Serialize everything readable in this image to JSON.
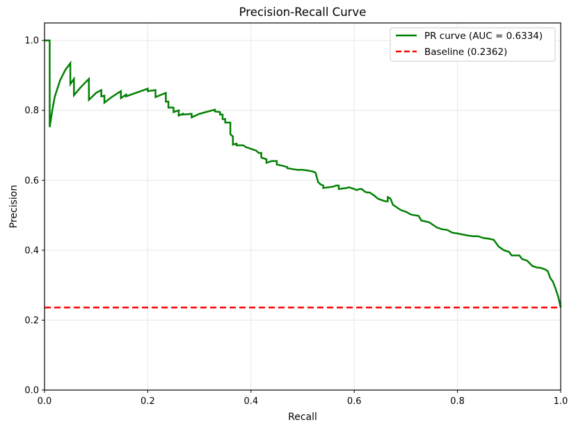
{
  "chart_data": {
    "type": "line",
    "title": "Precision-Recall Curve",
    "xlabel": "Recall",
    "ylabel": "Precision",
    "xlim": [
      0,
      1
    ],
    "ylim": [
      0,
      1.05
    ],
    "xticks": [
      0.0,
      0.2,
      0.4,
      0.6,
      0.8,
      1.0
    ],
    "yticks": [
      0.0,
      0.2,
      0.4,
      0.6,
      0.8,
      1.0
    ],
    "xtick_labels": [
      "0.0",
      "0.2",
      "0.4",
      "0.6",
      "0.8",
      "1.0"
    ],
    "ytick_labels": [
      "0.0",
      "0.2",
      "0.4",
      "0.6",
      "0.8",
      "1.0"
    ],
    "grid": true,
    "legend_position": "top-right",
    "series": [
      {
        "name": "PR curve (AUC = 0.6334)",
        "color": "#008000",
        "style": "solid",
        "points": [
          [
            0.0,
            1.0
          ],
          [
            0.01,
            1.0
          ],
          [
            0.01,
            0.752
          ],
          [
            0.015,
            0.8
          ],
          [
            0.02,
            0.84
          ],
          [
            0.03,
            0.885
          ],
          [
            0.04,
            0.915
          ],
          [
            0.05,
            0.935
          ],
          [
            0.05,
            0.875
          ],
          [
            0.057,
            0.89
          ],
          [
            0.057,
            0.843
          ],
          [
            0.07,
            0.866
          ],
          [
            0.086,
            0.89
          ],
          [
            0.086,
            0.83
          ],
          [
            0.1,
            0.85
          ],
          [
            0.11,
            0.858
          ],
          [
            0.11,
            0.84
          ],
          [
            0.116,
            0.842
          ],
          [
            0.116,
            0.822
          ],
          [
            0.13,
            0.838
          ],
          [
            0.148,
            0.855
          ],
          [
            0.148,
            0.835
          ],
          [
            0.158,
            0.845
          ],
          [
            0.158,
            0.84
          ],
          [
            0.2,
            0.862
          ],
          [
            0.2,
            0.855
          ],
          [
            0.215,
            0.858
          ],
          [
            0.215,
            0.838
          ],
          [
            0.235,
            0.85
          ],
          [
            0.235,
            0.825
          ],
          [
            0.24,
            0.825
          ],
          [
            0.24,
            0.808
          ],
          [
            0.25,
            0.808
          ],
          [
            0.25,
            0.795
          ],
          [
            0.26,
            0.8
          ],
          [
            0.26,
            0.785
          ],
          [
            0.268,
            0.79
          ],
          [
            0.268,
            0.788
          ],
          [
            0.285,
            0.79
          ],
          [
            0.285,
            0.78
          ],
          [
            0.3,
            0.79
          ],
          [
            0.33,
            0.802
          ],
          [
            0.33,
            0.797
          ],
          [
            0.34,
            0.795
          ],
          [
            0.34,
            0.788
          ],
          [
            0.345,
            0.788
          ],
          [
            0.345,
            0.775
          ],
          [
            0.35,
            0.775
          ],
          [
            0.35,
            0.765
          ],
          [
            0.36,
            0.765
          ],
          [
            0.36,
            0.732
          ],
          [
            0.365,
            0.725
          ],
          [
            0.365,
            0.702
          ],
          [
            0.372,
            0.705
          ],
          [
            0.372,
            0.7
          ],
          [
            0.385,
            0.7
          ],
          [
            0.39,
            0.695
          ],
          [
            0.4,
            0.69
          ],
          [
            0.41,
            0.685
          ],
          [
            0.415,
            0.678
          ],
          [
            0.42,
            0.678
          ],
          [
            0.42,
            0.665
          ],
          [
            0.43,
            0.66
          ],
          [
            0.43,
            0.65
          ],
          [
            0.44,
            0.655
          ],
          [
            0.45,
            0.655
          ],
          [
            0.45,
            0.645
          ],
          [
            0.46,
            0.642
          ],
          [
            0.47,
            0.638
          ],
          [
            0.47,
            0.635
          ],
          [
            0.48,
            0.632
          ],
          [
            0.49,
            0.63
          ],
          [
            0.5,
            0.63
          ],
          [
            0.51,
            0.628
          ],
          [
            0.52,
            0.625
          ],
          [
            0.525,
            0.622
          ],
          [
            0.53,
            0.595
          ],
          [
            0.535,
            0.588
          ],
          [
            0.54,
            0.585
          ],
          [
            0.54,
            0.578
          ],
          [
            0.55,
            0.58
          ],
          [
            0.56,
            0.582
          ],
          [
            0.565,
            0.585
          ],
          [
            0.57,
            0.585
          ],
          [
            0.57,
            0.575
          ],
          [
            0.585,
            0.578
          ],
          [
            0.59,
            0.58
          ],
          [
            0.6,
            0.575
          ],
          [
            0.605,
            0.572
          ],
          [
            0.61,
            0.575
          ],
          [
            0.615,
            0.575
          ],
          [
            0.62,
            0.568
          ],
          [
            0.625,
            0.565
          ],
          [
            0.63,
            0.565
          ],
          [
            0.64,
            0.555
          ],
          [
            0.645,
            0.548
          ],
          [
            0.65,
            0.545
          ],
          [
            0.66,
            0.54
          ],
          [
            0.665,
            0.54
          ],
          [
            0.665,
            0.552
          ],
          [
            0.67,
            0.548
          ],
          [
            0.675,
            0.53
          ],
          [
            0.68,
            0.525
          ],
          [
            0.69,
            0.515
          ],
          [
            0.7,
            0.51
          ],
          [
            0.71,
            0.502
          ],
          [
            0.725,
            0.498
          ],
          [
            0.73,
            0.485
          ],
          [
            0.745,
            0.48
          ],
          [
            0.75,
            0.475
          ],
          [
            0.76,
            0.465
          ],
          [
            0.77,
            0.46
          ],
          [
            0.78,
            0.458
          ],
          [
            0.79,
            0.45
          ],
          [
            0.8,
            0.448
          ],
          [
            0.81,
            0.445
          ],
          [
            0.82,
            0.442
          ],
          [
            0.83,
            0.44
          ],
          [
            0.84,
            0.44
          ],
          [
            0.85,
            0.435
          ],
          [
            0.86,
            0.433
          ],
          [
            0.87,
            0.43
          ],
          [
            0.875,
            0.42
          ],
          [
            0.88,
            0.41
          ],
          [
            0.89,
            0.4
          ],
          [
            0.9,
            0.395
          ],
          [
            0.905,
            0.385
          ],
          [
            0.92,
            0.385
          ],
          [
            0.925,
            0.375
          ],
          [
            0.935,
            0.37
          ],
          [
            0.945,
            0.355
          ],
          [
            0.955,
            0.35
          ],
          [
            0.96,
            0.35
          ],
          [
            0.97,
            0.345
          ],
          [
            0.975,
            0.34
          ],
          [
            0.98,
            0.32
          ],
          [
            0.985,
            0.31
          ],
          [
            0.99,
            0.29
          ],
          [
            0.995,
            0.268
          ],
          [
            1.0,
            0.2362
          ]
        ]
      },
      {
        "name": "Baseline (0.2362)",
        "color": "#ff0000",
        "style": "dashed",
        "points": [
          [
            0.0,
            0.2362
          ],
          [
            1.0,
            0.2362
          ]
        ]
      }
    ]
  }
}
